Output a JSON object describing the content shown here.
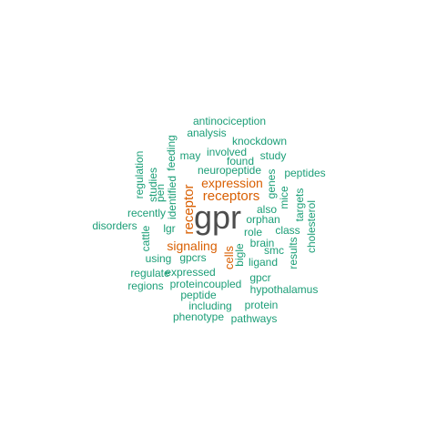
{
  "colors": {
    "primary": "#4d4d4d",
    "accent": "#d95f02",
    "common": "#1b9e77"
  },
  "words": [
    {
      "text": "gpr",
      "tier": "primary"
    },
    {
      "text": "receptors",
      "tier": "accent"
    },
    {
      "text": "receptor",
      "tier": "accent"
    },
    {
      "text": "expression",
      "tier": "accent"
    },
    {
      "text": "signaling",
      "tier": "accent"
    },
    {
      "text": "cells",
      "tier": "accent"
    },
    {
      "text": "antinociception",
      "tier": "common"
    },
    {
      "text": "analysis",
      "tier": "common"
    },
    {
      "text": "knockdown",
      "tier": "common"
    },
    {
      "text": "involved",
      "tier": "common"
    },
    {
      "text": "may",
      "tier": "common"
    },
    {
      "text": "study",
      "tier": "common"
    },
    {
      "text": "found",
      "tier": "common"
    },
    {
      "text": "feeding",
      "tier": "common"
    },
    {
      "text": "regulation",
      "tier": "common"
    },
    {
      "text": "studies",
      "tier": "common"
    },
    {
      "text": "neuropeptide",
      "tier": "common"
    },
    {
      "text": "peptides",
      "tier": "common"
    },
    {
      "text": "genes",
      "tier": "common"
    },
    {
      "text": "mice",
      "tier": "common"
    },
    {
      "text": "pen",
      "tier": "common"
    },
    {
      "text": "identified",
      "tier": "common"
    },
    {
      "text": "targets",
      "tier": "common"
    },
    {
      "text": "cholesterol",
      "tier": "common"
    },
    {
      "text": "recently",
      "tier": "common"
    },
    {
      "text": "also",
      "tier": "common"
    },
    {
      "text": "orphan",
      "tier": "common"
    },
    {
      "text": "disorders",
      "tier": "common"
    },
    {
      "text": "lgr",
      "tier": "common"
    },
    {
      "text": "role",
      "tier": "common"
    },
    {
      "text": "class",
      "tier": "common"
    },
    {
      "text": "cattle",
      "tier": "common"
    },
    {
      "text": "brain",
      "tier": "common"
    },
    {
      "text": "bigle",
      "tier": "common"
    },
    {
      "text": "smc",
      "tier": "common"
    },
    {
      "text": "results",
      "tier": "common"
    },
    {
      "text": "using",
      "tier": "common"
    },
    {
      "text": "gpcrs",
      "tier": "common"
    },
    {
      "text": "ligand",
      "tier": "common"
    },
    {
      "text": "regulate",
      "tier": "common"
    },
    {
      "text": "expressed",
      "tier": "common"
    },
    {
      "text": "gpcr",
      "tier": "common"
    },
    {
      "text": "regions",
      "tier": "common"
    },
    {
      "text": "proteincoupled",
      "tier": "common"
    },
    {
      "text": "hypothalamus",
      "tier": "common"
    },
    {
      "text": "peptide",
      "tier": "common"
    },
    {
      "text": "including",
      "tier": "common"
    },
    {
      "text": "protein",
      "tier": "common"
    },
    {
      "text": "phenotype",
      "tier": "common"
    },
    {
      "text": "pathways",
      "tier": "common"
    }
  ]
}
